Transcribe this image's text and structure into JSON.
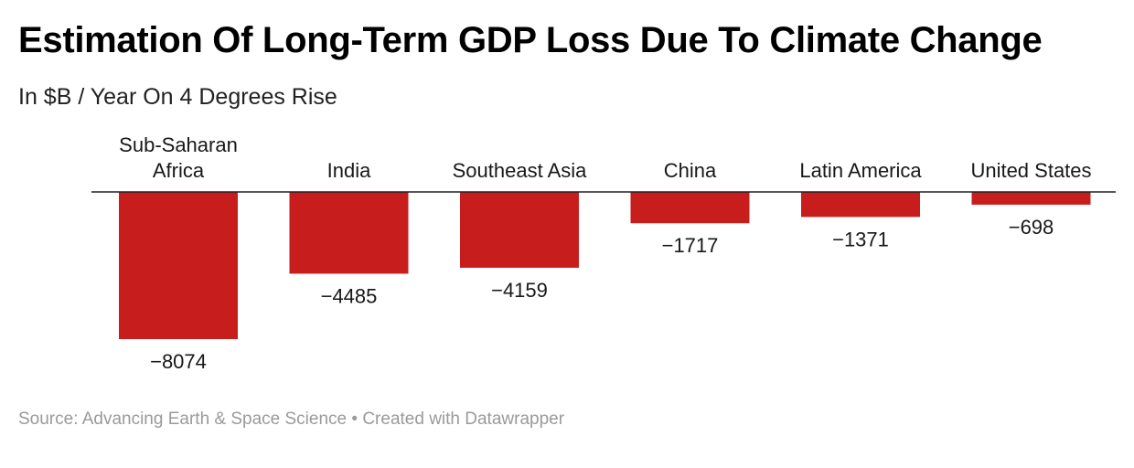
{
  "title": "Estimation Of Long-Term GDP Loss Due To Climate Change",
  "subtitle": "In $B / Year On 4 Degrees Rise",
  "footer": {
    "source": "Source: Advancing Earth & Space Science",
    "separator": "•",
    "credit": "Created with Datawrapper"
  },
  "colors": {
    "bar": "#c71e1d",
    "axis": "#222222"
  },
  "chart_data": {
    "type": "bar",
    "orientation": "vertical",
    "categories": [
      [
        "Sub-Saharan",
        "Africa"
      ],
      [
        "India"
      ],
      [
        "Southeast Asia"
      ],
      [
        "China"
      ],
      [
        "Latin America"
      ],
      [
        "United States"
      ]
    ],
    "values": [
      -8074,
      -4485,
      -4159,
      -1717,
      -1371,
      -698
    ],
    "value_labels": [
      "−8074",
      "−4485",
      "−4159",
      "−1717",
      "−1371",
      "−698"
    ],
    "ylim": [
      -8074,
      0
    ],
    "grid": false,
    "legend": false
  }
}
